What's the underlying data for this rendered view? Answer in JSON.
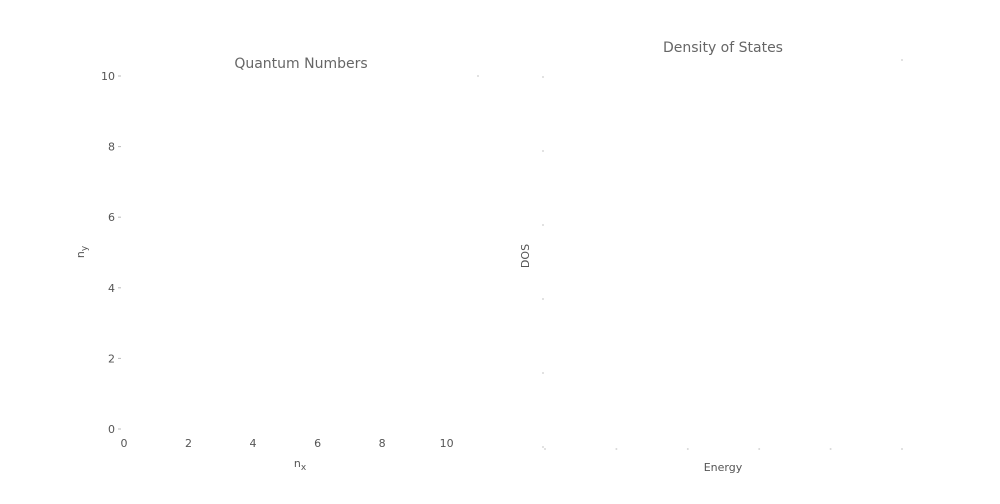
{
  "chart_data": [
    {
      "type": "scatter",
      "title": "Quantum Numbers",
      "xlabel": "n",
      "xlabel_sub": "x",
      "ylabel": "n",
      "ylabel_sub": "y",
      "xlim": [
        0,
        11.5
      ],
      "ylim": [
        0,
        10
      ],
      "xticks": [
        0,
        2,
        4,
        6,
        8,
        10
      ],
      "yticks": [
        0,
        2,
        4,
        6,
        8,
        10
      ],
      "grid": false,
      "series": []
    },
    {
      "type": "line",
      "title": "Density of States",
      "xlabel": "Energy",
      "ylabel": "DOS",
      "ytick_count": 6,
      "xtick_count": 6,
      "show_tick_labels": false,
      "grid": false,
      "series": []
    }
  ]
}
